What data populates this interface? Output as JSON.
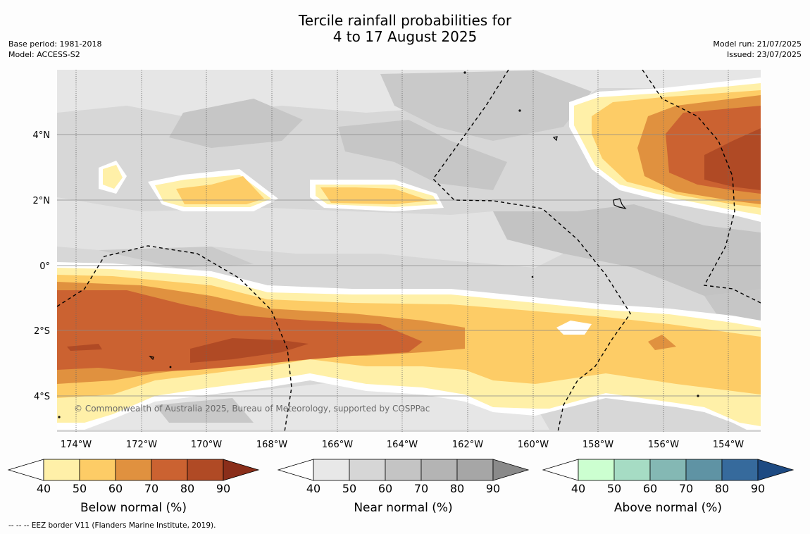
{
  "title_line1": "Tercile rainfall probabilities for",
  "title_line2": "4 to 17 August 2025",
  "base_period": "Base period: 1981-2018",
  "model": "Model: ACCESS-S2",
  "model_run": "Model run: 21/07/2025",
  "issued": "Issued: 23/07/2025",
  "copyright": "© Commonwealth of Australia 2025, Bureau of Meteorology, supported by COSPPac",
  "footnote": "--  --  -- EEZ border V11 (Flanders Marine Institute, 2019).",
  "lon_labels": [
    "174°W",
    "172°W",
    "170°W",
    "168°W",
    "166°W",
    "164°W",
    "162°W",
    "160°W",
    "158°W",
    "156°W",
    "154°W"
  ],
  "lat_labels": [
    "4°N",
    "2°N",
    "0°",
    "2°S",
    "4°S"
  ],
  "colorbars": [
    {
      "label": "Below normal (%)",
      "ticks": [
        "40",
        "50",
        "60",
        "70",
        "80",
        "90"
      ],
      "colors": [
        "#fff0a8",
        "#fdcc66",
        "#e0913f",
        "#cb6231",
        "#b04a25",
        "#8a2e1a"
      ]
    },
    {
      "label": "Near normal (%)",
      "ticks": [
        "40",
        "50",
        "60",
        "70",
        "80",
        "90"
      ],
      "colors": [
        "#e8e8e8",
        "#d6d6d6",
        "#c4c4c4",
        "#b4b4b4",
        "#a6a6a6",
        "#8a8a8a"
      ]
    },
    {
      "label": "Above normal (%)",
      "ticks": [
        "40",
        "50",
        "60",
        "70",
        "80",
        "90"
      ],
      "colors": [
        "#ccffd0",
        "#a6dcc4",
        "#84b8b4",
        "#5f93a4",
        "#366a9c",
        "#1d4a82"
      ]
    }
  ]
}
